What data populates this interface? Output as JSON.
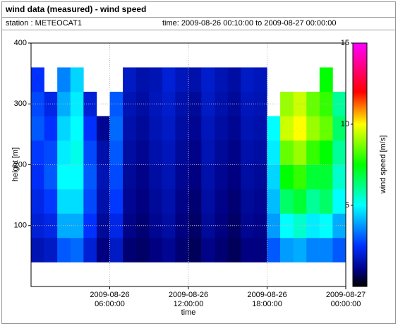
{
  "chart_data": {
    "type": "heatmap",
    "title": "wind data (measured) - wind speed",
    "station": "station : METEOCAT1",
    "period": "time: 2009-08-26 00:10:00 to 2009-08-27 00:00:00",
    "xlabel": "time",
    "ylabel": "height [m]",
    "colorbar_label": "wind speed [m/s]",
    "xlim": [
      0,
      24
    ],
    "xticks": [
      {
        "value": 6,
        "label": "2009-08-26 06:00:00"
      },
      {
        "value": 12,
        "label": "2009-08-26 12:00:00"
      },
      {
        "value": 18,
        "label": "2009-08-26 18:00:00"
      },
      {
        "value": 24,
        "label": "2009-08-27 00:00:00"
      }
    ],
    "ylim": [
      0,
      400
    ],
    "yticks": [
      100,
      200,
      300,
      400
    ],
    "zlim": [
      0,
      15
    ],
    "zticks": [
      5,
      10,
      15
    ],
    "grid": true,
    "colorscale": [
      [
        0,
        "#000000"
      ],
      [
        1,
        "#000080"
      ],
      [
        2.5,
        "#0030ff"
      ],
      [
        5,
        "#00ffff"
      ],
      [
        7.5,
        "#00ff00"
      ],
      [
        10,
        "#ffff00"
      ],
      [
        12,
        "#ff0000"
      ],
      [
        15,
        "#ff00ff"
      ]
    ],
    "x": [
      0.5,
      1.5,
      2.5,
      3.5,
      4.5,
      5.5,
      6.5,
      7.5,
      8.5,
      9.5,
      10.5,
      11.5,
      12.5,
      13.5,
      14.5,
      15.5,
      16.5,
      17.5,
      18.5,
      19.5,
      20.5,
      21.5,
      22.5,
      23.5
    ],
    "y": [
      60,
      100,
      140,
      180,
      220,
      260,
      300,
      340
    ],
    "z": [
      [
        1.6,
        1.8,
        3.0,
        3.2,
        2.0,
        1.0,
        1.8,
        0.9,
        0.8,
        1.0,
        1.2,
        0.9,
        0.7,
        1.1,
        0.9,
        0.7,
        1.0,
        1.0,
        3.0,
        3.8,
        4.0,
        3.5,
        3.5,
        3.0
      ],
      [
        2.0,
        2.2,
        4.0,
        4.0,
        2.5,
        1.3,
        2.2,
        1.1,
        0.9,
        1.2,
        1.4,
        1.0,
        0.8,
        1.3,
        1.0,
        0.8,
        1.2,
        1.1,
        3.8,
        5.0,
        5.5,
        4.8,
        5.0,
        4.0
      ],
      [
        2.2,
        2.6,
        4.6,
        4.6,
        2.8,
        1.5,
        2.6,
        1.2,
        1.0,
        1.3,
        1.5,
        1.1,
        0.9,
        1.4,
        1.1,
        0.9,
        1.3,
        1.2,
        4.2,
        6.5,
        7.0,
        6.0,
        6.5,
        5.0
      ],
      [
        2.4,
        3.0,
        5.0,
        5.0,
        3.0,
        1.6,
        2.8,
        1.3,
        1.1,
        1.4,
        1.6,
        1.2,
        1.0,
        1.5,
        1.2,
        1.0,
        1.4,
        1.3,
        4.5,
        7.5,
        8.0,
        7.0,
        7.0,
        5.5
      ],
      [
        2.6,
        2.8,
        4.8,
        5.2,
        2.8,
        1.5,
        3.0,
        1.4,
        1.2,
        1.5,
        1.7,
        1.3,
        1.1,
        1.6,
        1.3,
        1.1,
        1.5,
        1.4,
        4.8,
        8.5,
        9.0,
        8.0,
        7.5,
        6.0
      ],
      [
        3.0,
        2.5,
        4.5,
        5.0,
        2.5,
        1.2,
        3.2,
        1.5,
        1.3,
        1.6,
        1.8,
        1.4,
        1.2,
        1.7,
        1.4,
        1.2,
        1.6,
        1.5,
        5.0,
        9.5,
        10.0,
        9.0,
        8.5,
        6.5
      ],
      [
        2.8,
        2.2,
        4.0,
        4.8,
        2.0,
        null,
        3.0,
        1.6,
        1.4,
        1.7,
        1.9,
        1.5,
        1.3,
        1.8,
        1.5,
        1.3,
        1.7,
        1.6,
        null,
        9.0,
        9.5,
        8.5,
        8.0,
        6.0
      ],
      [
        2.5,
        null,
        3.5,
        4.5,
        null,
        null,
        null,
        1.8,
        1.5,
        1.6,
        2.0,
        1.7,
        1.5,
        1.9,
        1.6,
        1.4,
        1.8,
        1.7,
        null,
        null,
        null,
        null,
        7.5,
        null
      ]
    ]
  }
}
